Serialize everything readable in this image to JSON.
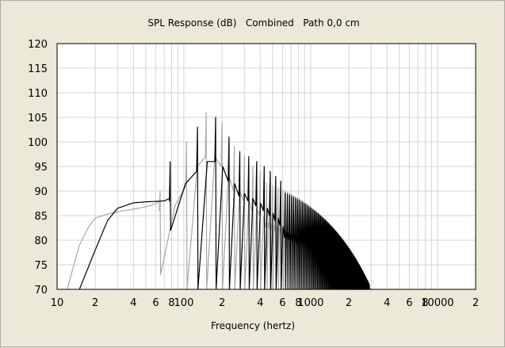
{
  "chart_data": {
    "type": "line",
    "title": "SPL Response (dB)   Combined   Path 0,0 cm",
    "xlabel": "Frequency (hertz)",
    "ylabel": "",
    "xscale": "log",
    "xlim": [
      10,
      20000
    ],
    "ylim": [
      70,
      120
    ],
    "grid": true,
    "y_ticks": [
      "70",
      "75",
      "80",
      "85",
      "90",
      "95",
      "100",
      "105",
      "110",
      "115",
      "120"
    ],
    "x_ticks": [
      {
        "value": 10,
        "label": "10"
      },
      {
        "value": 20,
        "label": "2"
      },
      {
        "value": 40,
        "label": "4"
      },
      {
        "value": 60,
        "label": "6"
      },
      {
        "value": 80,
        "label": "8"
      },
      {
        "value": 100,
        "label": "100"
      },
      {
        "value": 200,
        "label": "2"
      },
      {
        "value": 400,
        "label": "4"
      },
      {
        "value": 600,
        "label": "6"
      },
      {
        "value": 800,
        "label": "8"
      },
      {
        "value": 1000,
        "label": "1000"
      },
      {
        "value": 2000,
        "label": "2"
      },
      {
        "value": 4000,
        "label": "4"
      },
      {
        "value": 6000,
        "label": "6"
      },
      {
        "value": 8000,
        "label": "8"
      },
      {
        "value": 10000,
        "label": "10000"
      },
      {
        "value": 20000,
        "label": "2"
      }
    ],
    "series": [
      {
        "color": "#000000",
        "baseline": {
          "x": [
            15,
            20,
            25,
            30,
            40,
            50,
            60,
            70,
            76
          ],
          "y": [
            70,
            78,
            84,
            86.5,
            87.6,
            87.8,
            87.9,
            88,
            88.4
          ]
        },
        "base_floor": 88,
        "peak_spacing": 26,
        "peak_start": 78,
        "peak_decay_to": 2900,
        "peaks": [
          {
            "f": 78,
            "peak": 96,
            "dip": 82
          },
          {
            "f": 128,
            "peak": 103,
            "dip": 70
          },
          {
            "f": 178,
            "peak": 105,
            "dip": 70
          },
          {
            "f": 227,
            "peak": 101,
            "dip": 70
          },
          {
            "f": 276,
            "peak": 98,
            "dip": 70
          },
          {
            "f": 325,
            "peak": 97,
            "dip": 70
          },
          {
            "f": 375,
            "peak": 96,
            "dip": 70
          },
          {
            "f": 430,
            "peak": 95,
            "dip": 70
          },
          {
            "f": 480,
            "peak": 94,
            "dip": 70
          },
          {
            "f": 530,
            "peak": 93,
            "dip": 70
          },
          {
            "f": 580,
            "peak": 92,
            "dip": 70
          }
        ]
      },
      {
        "color": "#a8a8a8",
        "baseline": {
          "x": [
            12,
            15,
            18,
            20,
            25,
            30,
            40,
            50,
            60,
            65
          ],
          "y": [
            70,
            79,
            83,
            84.5,
            85.3,
            85.8,
            86.3,
            86.8,
            87.4,
            88
          ]
        },
        "base_floor": 86,
        "peak_spacing": 26,
        "peak_start": 65,
        "peak_decay_to": 2600,
        "peaks": [
          {
            "f": 65,
            "peak": 90,
            "dip": 73
          },
          {
            "f": 105,
            "peak": 100,
            "dip": 70
          },
          {
            "f": 150,
            "peak": 106,
            "dip": 70
          },
          {
            "f": 200,
            "peak": 104,
            "dip": 70
          },
          {
            "f": 250,
            "peak": 99,
            "dip": 70
          },
          {
            "f": 300,
            "peak": 97,
            "dip": 70
          },
          {
            "f": 350,
            "peak": 95,
            "dip": 70
          },
          {
            "f": 400,
            "peak": 94,
            "dip": 70
          }
        ]
      }
    ]
  }
}
